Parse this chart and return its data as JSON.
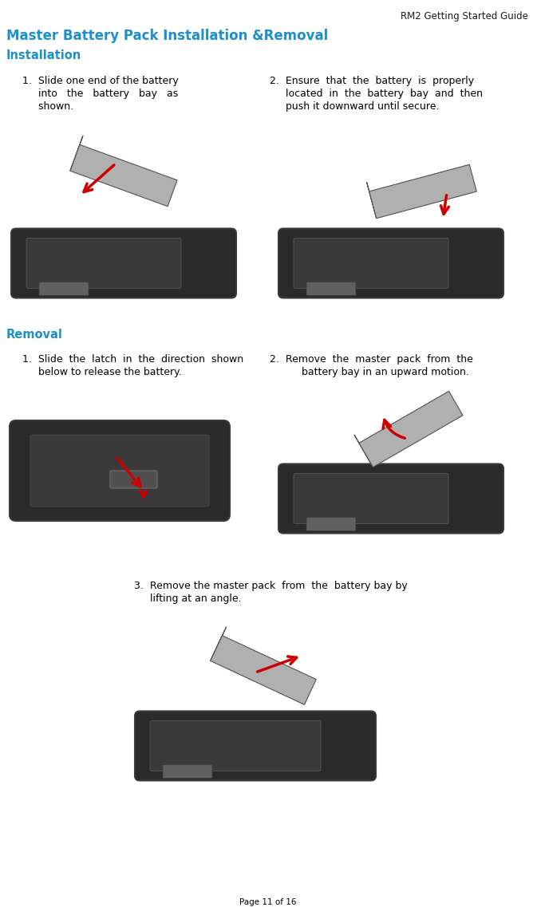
{
  "header_right": "RM2 Getting Started Guide",
  "title": "Master Battery Pack Installation &Removal",
  "section1": "Installation",
  "section2": "Removal",
  "install_step1_line1": "1.  Slide one end of the battery",
  "install_step1_line2": "     into   the   battery   bay   as",
  "install_step1_line3": "     shown.",
  "install_step2_line1": "2.  Ensure  that  the  battery  is  properly",
  "install_step2_line2": "     located  in  the  battery  bay  and  then",
  "install_step2_line3": "     push it downward until secure.",
  "removal_step1_line1": "1.  Slide  the  latch  in  the  direction  shown",
  "removal_step1_line2": "     below to release the battery.",
  "removal_step2_line1": "2.  Remove  the  master  pack  from  the",
  "removal_step2_line2": "          battery bay in an upward motion.",
  "removal_step3_line1": "3.  Remove the master pack  from  the  battery bay by",
  "removal_step3_line2": "     lifting at an angle.",
  "footer": "Page 11 of 16",
  "bg_color": "#ffffff",
  "title_color": "#1e90c8",
  "section_color": "#1e90c8",
  "text_color": "#000000",
  "header_color": "#1a1a1a",
  "arrow_color": "#cc0000",
  "device_dark": "#2a2a2a",
  "device_mid": "#3a3a3a",
  "device_light": "#606060",
  "battery_color": "#909090",
  "battery_light": "#b0b0b0"
}
